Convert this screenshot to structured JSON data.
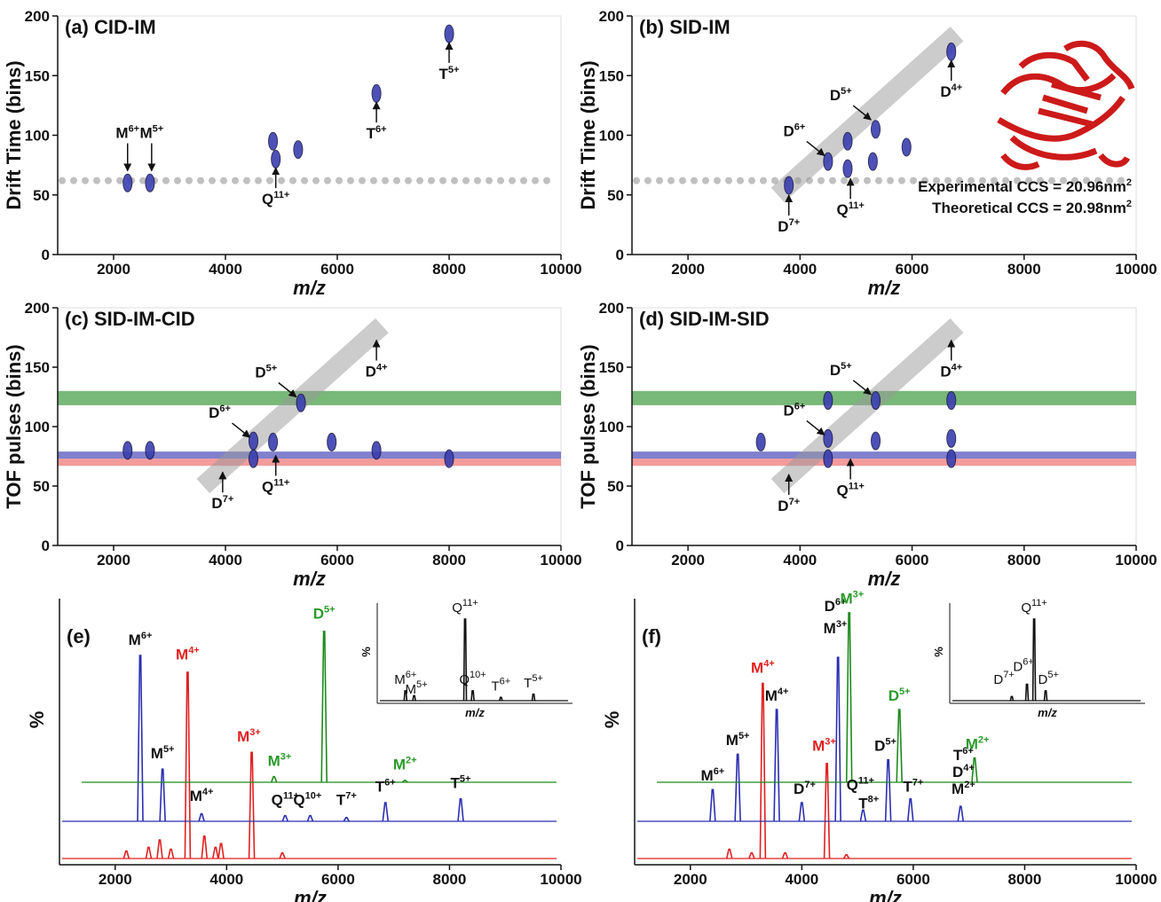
{
  "chart_data": [
    {
      "type": "scatter",
      "title": "(a) CID-IM",
      "y_label": "Drift Time (bins)",
      "x_label": "m/z",
      "xlim": [
        1000,
        10000
      ],
      "xticks": [
        2000,
        4000,
        6000,
        8000,
        10000
      ],
      "ylim": [
        0,
        200
      ],
      "yticks": [
        0,
        50,
        100,
        150,
        200
      ],
      "hline": 62,
      "hline_color": "#c0c0c0",
      "series": [
        {
          "color": "#3a3fb0",
          "x": [
            2250,
            2650,
            4850,
            4900,
            5300,
            6700,
            8000
          ],
          "values": [
            60,
            60,
            95,
            80,
            88,
            135,
            185
          ]
        }
      ],
      "annotations": [
        {
          "ion": "M",
          "charge": "6+",
          "x": 2250,
          "y": 68,
          "side": "above"
        },
        {
          "ion": "M",
          "charge": "5+",
          "x": 2680,
          "y": 68,
          "side": "above"
        },
        {
          "ion": "Q",
          "charge": "11+",
          "x": 4900,
          "y": 75,
          "side": "below"
        },
        {
          "ion": "T",
          "charge": "6+",
          "x": 6700,
          "y": 130,
          "side": "below"
        },
        {
          "ion": "T",
          "charge": "5+",
          "x": 8000,
          "y": 180,
          "side": "below"
        }
      ]
    },
    {
      "type": "scatter",
      "title": "(b) SID-IM",
      "y_label": "Drift Time (bins)",
      "x_label": "m/z",
      "xlim": [
        1000,
        10000
      ],
      "xticks": [
        2000,
        4000,
        6000,
        8000,
        10000
      ],
      "ylim": [
        0,
        200
      ],
      "yticks": [
        0,
        50,
        100,
        150,
        200
      ],
      "hline": 62,
      "hline_color": "#c0c0c0",
      "band": {
        "x": [
          3600,
          6800
        ],
        "y": [
          50,
          185
        ],
        "color": "#9a9a9a"
      },
      "series": [
        {
          "color": "#3a3fb0",
          "x": [
            3800,
            4500,
            4850,
            4850,
            5350,
            5300,
            5900,
            6700
          ],
          "values": [
            58,
            78,
            95,
            72,
            105,
            78,
            90,
            170
          ]
        }
      ],
      "annotations": [
        {
          "ion": "D",
          "charge": "7+",
          "x": 3800,
          "y": 52,
          "side": "below"
        },
        {
          "ion": "D",
          "charge": "6+",
          "x": 4500,
          "y": 80,
          "side": "upper-left"
        },
        {
          "ion": "Q",
          "charge": "11+",
          "x": 4900,
          "y": 66,
          "side": "below"
        },
        {
          "ion": "D",
          "charge": "5+",
          "x": 5330,
          "y": 110,
          "side": "upper-left"
        },
        {
          "ion": "D",
          "charge": "4+",
          "x": 6700,
          "y": 165,
          "side": "below"
        }
      ],
      "notes": [
        {
          "text": "Experimental CCS = 20.96nm",
          "sup": "2"
        },
        {
          "text": "Theoretical CCS = 20.98nm",
          "sup": "2"
        }
      ]
    },
    {
      "type": "scatter",
      "title": "(c) SID-IM-CID",
      "y_label": "TOF pulses (bins)",
      "x_label": "m/z",
      "xlim": [
        1000,
        10000
      ],
      "xticks": [
        2000,
        4000,
        6000,
        8000,
        10000
      ],
      "ylim": [
        0,
        200
      ],
      "yticks": [
        0,
        50,
        100,
        150,
        200
      ],
      "hbands": [
        {
          "y": [
            118,
            130
          ],
          "color": "#3f9a3f"
        },
        {
          "y": [
            73,
            79
          ],
          "color": "#4a4ab8"
        },
        {
          "y": [
            67,
            73
          ],
          "color": "#f07070"
        }
      ],
      "band": {
        "x": [
          3600,
          6800
        ],
        "y": [
          50,
          185
        ],
        "color": "#9a9a9a"
      },
      "series": [
        {
          "color": "#3a3fb0",
          "x": [
            2250,
            2650,
            4500,
            4850,
            5350,
            5900,
            6700,
            8000,
            4500
          ],
          "values": [
            80,
            80,
            88,
            87,
            120,
            87,
            80,
            73,
            73
          ]
        }
      ],
      "annotations": [
        {
          "ion": "D",
          "charge": "7+",
          "x": 3950,
          "y": 64,
          "side": "below"
        },
        {
          "ion": "D",
          "charge": "6+",
          "x": 4500,
          "y": 88,
          "side": "upper-left"
        },
        {
          "ion": "Q",
          "charge": "11+",
          "x": 4900,
          "y": 78,
          "side": "below"
        },
        {
          "ion": "D",
          "charge": "5+",
          "x": 5330,
          "y": 122,
          "side": "upper-left"
        },
        {
          "ion": "D",
          "charge": "4+",
          "x": 6700,
          "y": 175,
          "side": "below"
        }
      ]
    },
    {
      "type": "scatter",
      "title": "(d) SID-IM-SID",
      "y_label": "TOF pulses (bins)",
      "x_label": "m/z",
      "xlim": [
        1000,
        10000
      ],
      "xticks": [
        2000,
        4000,
        6000,
        8000,
        10000
      ],
      "ylim": [
        0,
        200
      ],
      "yticks": [
        0,
        50,
        100,
        150,
        200
      ],
      "hbands": [
        {
          "y": [
            118,
            130
          ],
          "color": "#3f9a3f"
        },
        {
          "y": [
            73,
            79
          ],
          "color": "#4a4ab8"
        },
        {
          "y": [
            67,
            73
          ],
          "color": "#f07070"
        }
      ],
      "band": {
        "x": [
          3600,
          6800
        ],
        "y": [
          50,
          185
        ],
        "color": "#9a9a9a"
      },
      "series": [
        {
          "color": "#3a3fb0",
          "x": [
            3300,
            4500,
            4500,
            4500,
            5350,
            5350,
            6700,
            6700,
            6700
          ],
          "values": [
            87,
            122,
            90,
            73,
            122,
            88,
            122,
            90,
            73
          ]
        }
      ],
      "annotations": [
        {
          "ion": "D",
          "charge": "7+",
          "x": 3800,
          "y": 62,
          "side": "below"
        },
        {
          "ion": "D",
          "charge": "6+",
          "x": 4500,
          "y": 90,
          "side": "upper-left"
        },
        {
          "ion": "Q",
          "charge": "11+",
          "x": 4900,
          "y": 75,
          "side": "below"
        },
        {
          "ion": "D",
          "charge": "5+",
          "x": 5330,
          "y": 124,
          "side": "upper-left"
        },
        {
          "ion": "D",
          "charge": "4+",
          "x": 6700,
          "y": 175,
          "side": "below"
        }
      ]
    },
    {
      "type": "spectrum",
      "title": "(e)",
      "y_label": "%",
      "x_label": "m/z",
      "xlim": [
        1000,
        10000
      ],
      "xticks": [
        2000,
        4000,
        6000,
        8000,
        10000
      ],
      "series": [
        {
          "color": "#e02020",
          "x": [
            2200,
            2600,
            2800,
            3000,
            3300,
            3600,
            3800,
            3900,
            4450,
            5000
          ],
          "values": [
            4,
            6,
            10,
            5,
            100,
            12,
            6,
            8,
            57,
            3
          ]
        },
        {
          "color": "#2b2fb0",
          "x": [
            2450,
            2850,
            3550,
            5050,
            5500,
            6150,
            6850,
            8200
          ],
          "values": [
            89,
            28,
            4,
            3,
            3,
            2,
            10,
            12
          ]
        },
        {
          "color": "#1e8a1e",
          "x": [
            4850,
            5750,
            7200
          ],
          "values": [
            3,
            81,
            1
          ]
        }
      ],
      "annotations": [
        {
          "ion": "M",
          "charge": "4+",
          "x": 3300,
          "y": 104,
          "series": 0,
          "color": "#e02020"
        },
        {
          "ion": "M",
          "charge": "3+",
          "x": 4400,
          "y": 60,
          "series": 0,
          "color": "#e02020"
        },
        {
          "ion": "M",
          "charge": "6+",
          "x": 2450,
          "y": 92,
          "series": 1
        },
        {
          "ion": "M",
          "charge": "5+",
          "x": 2850,
          "y": 31,
          "series": 1
        },
        {
          "ion": "M",
          "charge": "4+",
          "x": 3550,
          "y": 8,
          "series": 1
        },
        {
          "ion": "Q",
          "charge": "11+",
          "x": 5050,
          "y": 6,
          "series": 1
        },
        {
          "ion": "Q",
          "charge": "10+",
          "x": 5450,
          "y": 6,
          "series": 1
        },
        {
          "ion": "T",
          "charge": "7+",
          "x": 6150,
          "y": 6,
          "series": 1
        },
        {
          "ion": "T",
          "charge": "6+",
          "x": 6850,
          "y": 13,
          "series": 1
        },
        {
          "ion": "T",
          "charge": "5+",
          "x": 8200,
          "y": 15,
          "series": 1
        },
        {
          "ion": "D",
          "charge": "5+",
          "x": 5750,
          "y": 85,
          "series": 2,
          "color": "#2a9a2a"
        },
        {
          "ion": "M",
          "charge": "3+",
          "x": 4950,
          "y": 6,
          "series": 2,
          "color": "#2a9a2a"
        },
        {
          "ion": "M",
          "charge": "2+",
          "x": 7200,
          "y": 4,
          "series": 2,
          "color": "#2a9a2a"
        }
      ],
      "inset": {
        "y_label": "%",
        "x_label": "m/z",
        "xlim": [
          1000,
          10000
        ],
        "series": [
          {
            "color": "#111111",
            "x": [
              2300,
              2700,
              5050,
              5400,
              6700,
              8200
            ],
            "values": [
              12,
              6,
              100,
              12,
              4,
              8
            ]
          }
        ],
        "annotations": [
          {
            "ion": "M",
            "charge": "6+",
            "x": 2300,
            "y": 14,
            "series": 0
          },
          {
            "ion": "M",
            "charge": "5+",
            "x": 2800,
            "y": 2,
            "series": 0
          },
          {
            "ion": "Q",
            "charge": "11+",
            "x": 5050,
            "y": 102,
            "series": 0
          },
          {
            "ion": "Q",
            "charge": "10+",
            "x": 5400,
            "y": 14,
            "series": 0
          },
          {
            "ion": "T",
            "charge": "6+",
            "x": 6700,
            "y": 6,
            "series": 0
          },
          {
            "ion": "T",
            "charge": "5+",
            "x": 8200,
            "y": 10,
            "series": 0
          }
        ]
      }
    },
    {
      "type": "spectrum",
      "title": "(f)",
      "y_label": "%",
      "x_label": "m/z",
      "xlim": [
        1000,
        10000
      ],
      "xticks": [
        2000,
        4000,
        6000,
        8000,
        10000
      ],
      "series": [
        {
          "color": "#e02020",
          "x": [
            2700,
            3100,
            3300,
            3700,
            4450,
            4800
          ],
          "values": [
            5,
            3,
            94,
            3,
            51,
            2
          ]
        },
        {
          "color": "#2b2fb0",
          "x": [
            2400,
            2850,
            3550,
            4000,
            4650,
            5100,
            5550,
            5950,
            6850
          ],
          "values": [
            17,
            36,
            60,
            10,
            88,
            6,
            33,
            12,
            8
          ]
        },
        {
          "color": "#1e8a1e",
          "x": [
            4850,
            5750,
            7100
          ],
          "values": [
            91,
            39,
            13
          ]
        }
      ],
      "annotations": [
        {
          "ion": "M",
          "charge": "4+",
          "x": 3300,
          "y": 97,
          "series": 0,
          "color": "#e02020"
        },
        {
          "ion": "M",
          "charge": "3+",
          "x": 4400,
          "y": 55,
          "series": 0,
          "color": "#e02020"
        },
        {
          "ion": "M",
          "charge": "6+",
          "x": 2400,
          "y": 19,
          "series": 1
        },
        {
          "ion": "M",
          "charge": "5+",
          "x": 2850,
          "y": 38,
          "series": 1
        },
        {
          "ion": "M",
          "charge": "4+",
          "x": 3550,
          "y": 62,
          "series": 1
        },
        {
          "ion": "D",
          "charge": "7+",
          "x": 4050,
          "y": 12,
          "series": 1
        },
        {
          "ion": "D",
          "charge": "6+",
          "x": 4600,
          "y": 110,
          "series": 1
        },
        {
          "ion": "M",
          "charge": "3+",
          "x": 4600,
          "y": 98,
          "series": 1
        },
        {
          "ion": "Q",
          "charge": "11+",
          "x": 5050,
          "y": 14,
          "series": 1
        },
        {
          "ion": "T",
          "charge": "8+",
          "x": 5200,
          "y": 4,
          "series": 1
        },
        {
          "ion": "D",
          "charge": "5+",
          "x": 5500,
          "y": 35,
          "series": 1
        },
        {
          "ion": "T",
          "charge": "7+",
          "x": 6000,
          "y": 13,
          "series": 1
        },
        {
          "ion": "T",
          "charge": "6+",
          "x": 6900,
          "y": 30,
          "series": 1
        },
        {
          "ion": "D",
          "charge": "4+",
          "x": 6900,
          "y": 21,
          "series": 1
        },
        {
          "ion": "M",
          "charge": "2+",
          "x": 6900,
          "y": 12,
          "series": 1
        },
        {
          "ion": "M",
          "charge": "3+",
          "x": 4900,
          "y": 93,
          "series": 2,
          "color": "#2a9a2a"
        },
        {
          "ion": "D",
          "charge": "5+",
          "x": 5750,
          "y": 41,
          "series": 2,
          "color": "#2a9a2a"
        },
        {
          "ion": "M",
          "charge": "2+",
          "x": 7150,
          "y": 15,
          "series": 2,
          "color": "#2a9a2a"
        }
      ],
      "inset": {
        "y_label": "%",
        "x_label": "m/z",
        "xlim": [
          1000,
          10000
        ],
        "series": [
          {
            "color": "#111111",
            "x": [
              3860,
              4560,
              4890,
              5420
            ],
            "values": [
              5,
              20,
              100,
              12
            ]
          }
        ],
        "annotations": [
          {
            "ion": "D",
            "charge": "7+",
            "x": 3500,
            "y": 14,
            "series": 0
          },
          {
            "ion": "D",
            "charge": "6+",
            "x": 4400,
            "y": 30,
            "series": 0
          },
          {
            "ion": "Q",
            "charge": "11+",
            "x": 4890,
            "y": 102,
            "series": 0
          },
          {
            "ion": "D",
            "charge": "5+",
            "x": 5550,
            "y": 14,
            "series": 0
          }
        ]
      }
    }
  ]
}
